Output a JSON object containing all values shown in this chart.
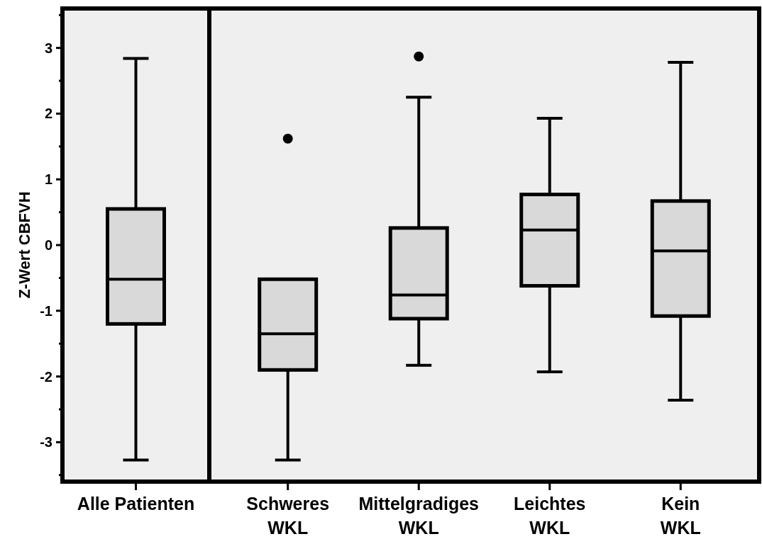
{
  "chart_data": [
    {
      "type": "box",
      "ylabel": "Z-Wert CBFVH",
      "categories": [
        "Alle Patienten"
      ],
      "ylim": [
        -3.6,
        3.6
      ],
      "yticks": [
        {
          "value": -3.5,
          "label": null
        },
        -3,
        {
          "value": -2.5,
          "label": null
        },
        -2,
        {
          "value": -1.5,
          "label": null
        },
        -1,
        {
          "value": -0.5,
          "label": null
        },
        0,
        {
          "value": 0.5,
          "label": null
        },
        1,
        {
          "value": 1.5,
          "label": null
        },
        2,
        {
          "value": 2.5,
          "label": null
        },
        3,
        {
          "value": 3.5,
          "label": null
        }
      ],
      "series": [
        {
          "color": "#d9d9d9",
          "boxes": [
            {
              "low": -3.27,
              "q1": -1.2,
              "median": -0.52,
              "q3": 0.55,
              "high": 2.84
            }
          ]
        }
      ]
    },
    {
      "type": "box",
      "categories": [
        "Schweres\nWKL",
        "Mittelgradiges\nWKL",
        "Leichtes\nWKL",
        "Kein\nWKL"
      ],
      "ylim": [
        -3.6,
        3.6
      ],
      "tick_labels": "x",
      "series": [
        {
          "color": "#d9d9d9",
          "boxes": [
            {
              "low": -3.27,
              "q1": -1.9,
              "median": -1.35,
              "q3": -0.52,
              "high": -0.52,
              "outliers": [
                1.62
              ]
            },
            {
              "low": -1.83,
              "q1": -1.12,
              "median": -0.76,
              "q3": 0.26,
              "high": 2.25,
              "outliers": [
                2.87
              ]
            },
            {
              "low": -1.93,
              "q1": -0.62,
              "median": 0.23,
              "q3": 0.77,
              "high": 1.93
            },
            {
              "low": -2.36,
              "q1": -1.08,
              "median": -0.09,
              "q3": 0.67,
              "high": 2.78
            }
          ]
        }
      ]
    }
  ]
}
